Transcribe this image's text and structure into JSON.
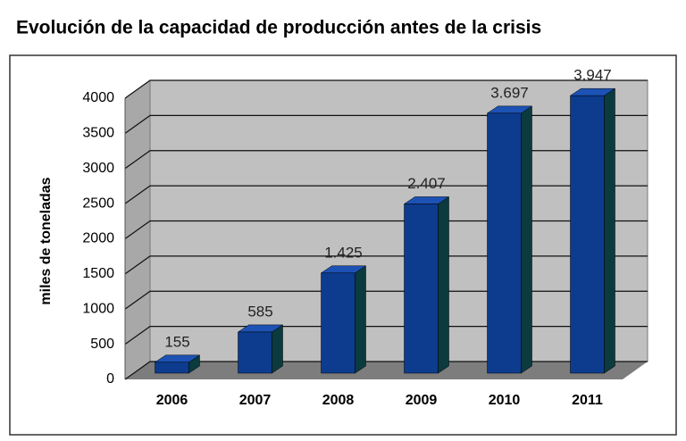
{
  "chart_data": {
    "type": "bar3d",
    "title": "Evolución de la capacidad de producción antes de la crisis",
    "ylabel": "miles de toneladas",
    "categories": [
      "2006",
      "2007",
      "2008",
      "2009",
      "2010",
      "2011"
    ],
    "values": [
      155,
      585,
      1425,
      2407,
      3697,
      3947
    ],
    "value_labels": [
      "155",
      "585",
      "1.425",
      "2.407",
      "3.697",
      "3.947"
    ],
    "color": "#0d3c8e",
    "ylim": [
      0,
      4000
    ],
    "yticks": [
      0,
      500,
      1000,
      1500,
      2000,
      2500,
      3000,
      3500,
      4000
    ],
    "grid": true
  }
}
